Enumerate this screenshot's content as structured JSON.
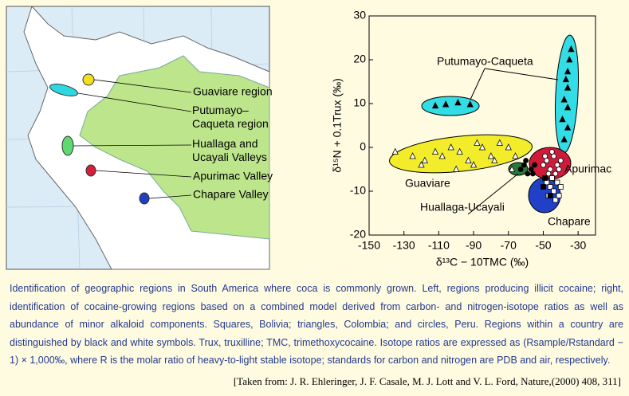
{
  "map": {
    "labels": [
      "Guaviare region",
      "Putumayo–Caqueta region",
      "Huallaga and Ucayali Valleys",
      "Apurimac Valley",
      "Chapare Valley"
    ]
  },
  "chart_data": {
    "type": "scatter",
    "xlabel": "δ¹³C − 10TMC (‰)",
    "ylabel": "δ¹⁵N + 0.1Trux (‰)",
    "xlim": [
      -150,
      -20
    ],
    "xticks": [
      -150,
      -130,
      -110,
      -90,
      -70,
      -50,
      -30
    ],
    "ylim": [
      -20,
      30
    ],
    "yticks": [
      -20,
      -10,
      0,
      10,
      20,
      30
    ],
    "annotations": [
      "Putumayo-Caqueta",
      "Apurimac",
      "Guaviare",
      "Huallaga-Ucayali",
      "Chapare"
    ],
    "series": [
      {
        "marker": "triangle",
        "fill": "#000000",
        "x": [
          -112,
          -106,
          -99,
          -92,
          -34,
          -35,
          -36,
          -37,
          -36,
          -38,
          -36,
          -39,
          -36,
          -38
        ],
        "y": [
          9.5,
          9.8,
          10.2,
          9.8,
          22.4,
          20,
          17.3,
          15.5,
          13.6,
          10.9,
          9.1,
          6.4,
          4.5,
          1.8
        ]
      },
      {
        "marker": "triangle",
        "fill": "#ffffff",
        "x": [
          -135,
          -125,
          -118,
          -112,
          -108,
          -103,
          -98,
          -93,
          -88,
          -85,
          -80,
          -75,
          -70,
          -66,
          -120,
          -100,
          -90,
          -78,
          -68
        ],
        "y": [
          -1,
          -2,
          -3,
          -1,
          -2,
          0,
          -1,
          -3,
          1,
          0,
          -2,
          1,
          0,
          -2,
          -4,
          -5,
          -4,
          -3,
          -5
        ]
      },
      {
        "marker": "circle",
        "fill": "#ffffff",
        "x": [
          -50,
          -48,
          -46,
          -44,
          -42,
          -40,
          -47,
          -43,
          -45,
          -49,
          -41
        ],
        "y": [
          -4,
          -3,
          -5,
          -2,
          -4,
          -3,
          -6,
          -6,
          -1,
          -2,
          -5
        ]
      },
      {
        "marker": "circle",
        "fill": "#000000",
        "x": [
          -63,
          -61,
          -59,
          -57,
          -55,
          -60,
          -56
        ],
        "y": [
          -5,
          -4,
          -6,
          -5,
          -4,
          -3,
          -6
        ]
      },
      {
        "marker": "square",
        "fill": "#ffffff",
        "x": [
          -48,
          -46,
          -44,
          -42,
          -40,
          -47,
          -43,
          -45,
          -41,
          -44
        ],
        "y": [
          -8,
          -9,
          -10,
          -8,
          -9,
          -11,
          -12,
          -7,
          -11,
          -10
        ]
      },
      {
        "marker": "square",
        "fill": "#000000",
        "x": [
          -50,
          -49,
          -46
        ],
        "y": [
          -9,
          -7,
          -11
        ]
      }
    ]
  },
  "caption": "Identification of geographic regions in South America where coca is commonly grown. Left, regions producing illicit cocaine; right, identification of cocaine-growing regions based on a combined model derived from carbon- and nitrogen-isotope ratios as well as abundance of minor alkaloid components. Squares, Bolivia; triangles, Colombia; and circles, Peru. Regions within a country are distinguished by black and white symbols. Trux, truxilline; TMC, trimethoxycocaine. Isotope ratios are expressed as (Rsample/Rstandard − 1) × 1,000‰, where R is the molar ratio of heavy-to-light stable isotope; standards for carbon and nitrogen are PDB and air, respectively.",
  "citation": "[Taken from: J. R. Ehleringer, J. F. Casale, M. J. Lott and V. L. Ford, Nature,(2000) 408, 311]"
}
